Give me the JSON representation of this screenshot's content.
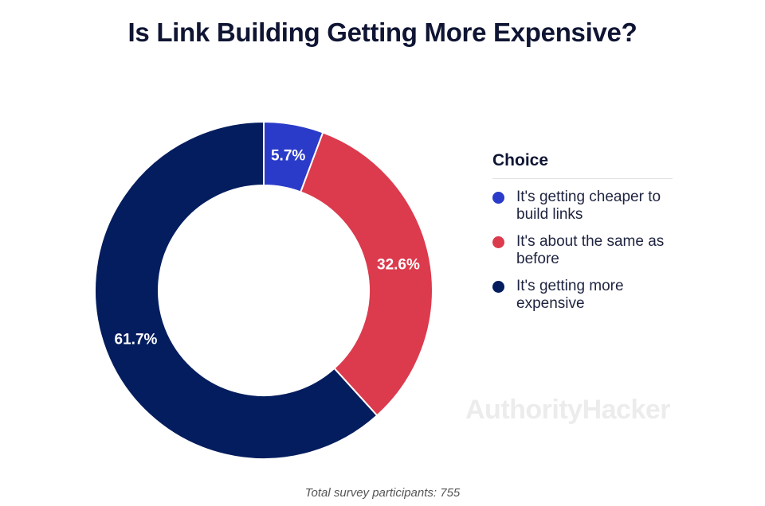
{
  "title": "Is Link Building Getting More Expensive?",
  "legend": {
    "title": "Choice",
    "items": [
      {
        "label": "It's getting cheaper to build links",
        "color": "#2b3bc9"
      },
      {
        "label": "It's about the same as before",
        "color": "#dc3a4d"
      },
      {
        "label": "It's getting more expensive",
        "color": "#031d5e"
      }
    ]
  },
  "watermark": "AuthorityHacker",
  "footnote": "Total survey participants: 755",
  "chart_data": {
    "type": "pie",
    "title": "Is Link Building Getting More Expensive?",
    "categories": [
      "It's getting cheaper to build links",
      "It's about the same as before",
      "It's getting more expensive"
    ],
    "values": [
      5.7,
      32.6,
      61.7
    ],
    "value_labels": [
      "5.7%",
      "32.6%",
      "61.7%"
    ],
    "colors": [
      "#2b3bc9",
      "#dc3a4d",
      "#031d5e"
    ],
    "donut": true,
    "legend_placement": "right"
  }
}
